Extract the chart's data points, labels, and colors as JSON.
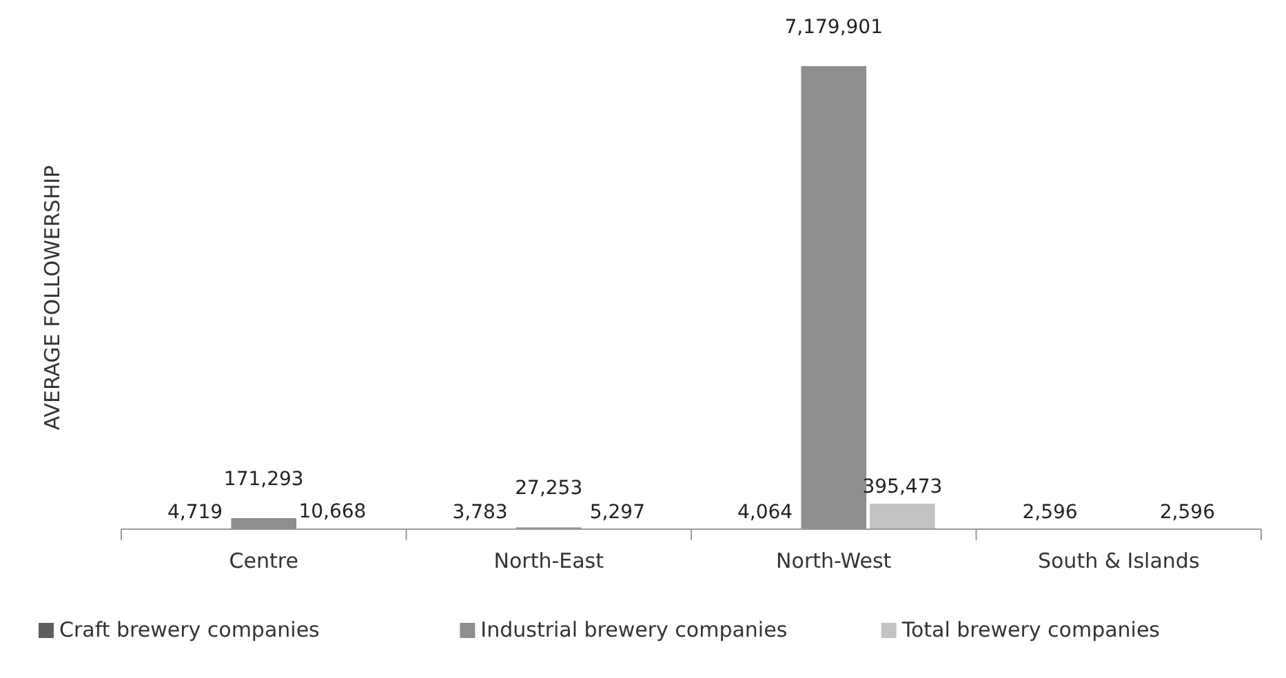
{
  "chart_data": {
    "type": "bar",
    "ylabel": "AVERAGE FOLLOWERSHIP",
    "categories": [
      "Centre",
      "North-East",
      "North-West",
      "South & Islands"
    ],
    "series": [
      {
        "name": "Craft brewery companies",
        "color": "#5f5f5f",
        "values": [
          4719,
          3783,
          4064,
          2596
        ],
        "value_labels": [
          "4,719",
          "3,783",
          "4,064",
          "2,596"
        ]
      },
      {
        "name": "Industrial brewery companies",
        "color": "#8e8e8e",
        "values": [
          171293,
          27253,
          7179901,
          null
        ],
        "value_labels": [
          "171,293",
          "27,253",
          "7,179,901",
          null
        ]
      },
      {
        "name": "Total brewery companies",
        "color": "#c3c3c3",
        "values": [
          10668,
          5297,
          395473,
          2596
        ],
        "value_labels": [
          "10,668",
          "5,297",
          "395,473",
          "2,596"
        ]
      }
    ],
    "legend": "bottom"
  }
}
